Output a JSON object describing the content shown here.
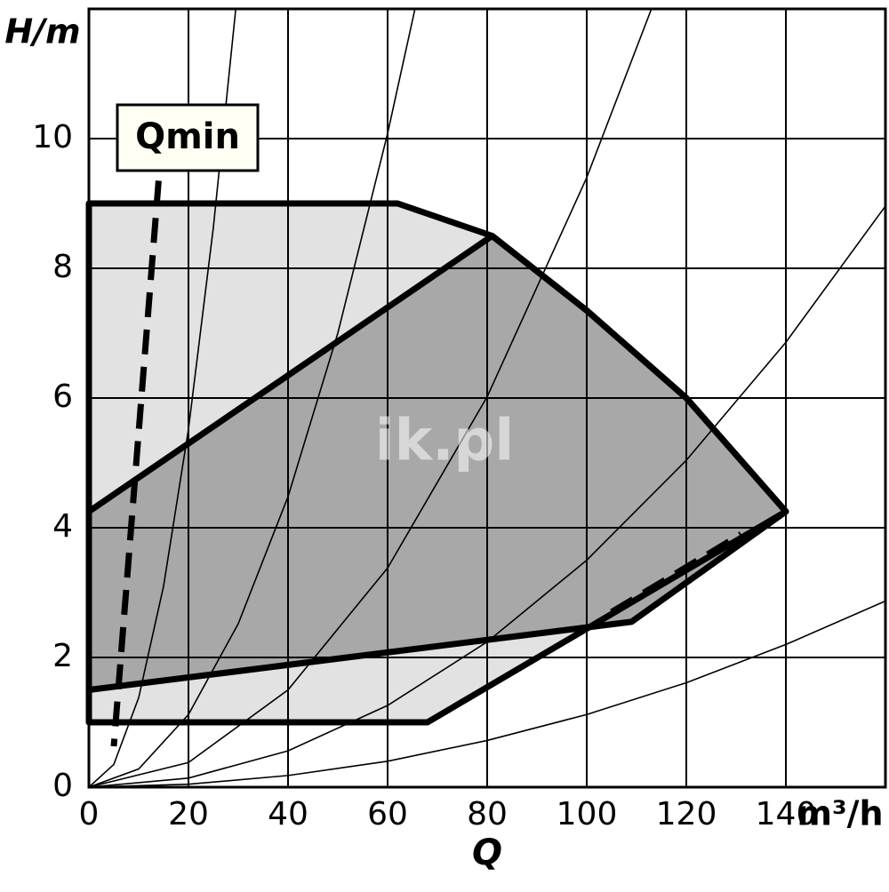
{
  "chart_data": {
    "type": "pump-curve",
    "title": "H/m",
    "x_label": "Q",
    "x_unit": "m³/h",
    "annotation": "Qmin",
    "watermark": "ik.pl",
    "xlim": [
      0,
      160
    ],
    "ylim": [
      0,
      12
    ],
    "xticks": [
      0,
      20,
      40,
      60,
      80,
      100,
      120,
      140
    ],
    "yticks": [
      0,
      2,
      4,
      6,
      8,
      10
    ],
    "grid": true,
    "regions": [
      {
        "color": "#e2e2e2",
        "x": [
          0,
          62,
          81,
          100,
          120,
          140,
          68,
          0
        ],
        "values": [
          9,
          9,
          8.5,
          7.35,
          6,
          4.25,
          1,
          1
        ]
      },
      {
        "color": "#a8a8a8",
        "x": [
          0,
          81,
          100,
          120,
          140,
          109,
          0
        ],
        "values": [
          4.25,
          8.5,
          7.35,
          6,
          4.25,
          2.55,
          1.5
        ]
      }
    ],
    "curves": [
      {
        "x": [
          0,
          5,
          10,
          15,
          20,
          25,
          29.5
        ],
        "values": [
          0,
          0.35,
          1.38,
          3.1,
          5.52,
          8.63,
          12
        ]
      },
      {
        "x": [
          0,
          10,
          20,
          30,
          40,
          50,
          60,
          65.5
        ],
        "values": [
          0,
          0.28,
          1.12,
          2.52,
          4.48,
          7,
          10.08,
          12
        ]
      },
      {
        "x": [
          0,
          20,
          40,
          60,
          80,
          100,
          113
        ],
        "values": [
          0,
          0.38,
          1.5,
          3.38,
          6.02,
          9.4,
          12
        ]
      },
      {
        "x": [
          0,
          20,
          40,
          60,
          80,
          100,
          120,
          140,
          160
        ],
        "values": [
          0,
          0.14,
          0.56,
          1.26,
          2.24,
          3.5,
          5.04,
          6.86,
          8.96
        ]
      },
      {
        "x": [
          0,
          20,
          40,
          60,
          80,
          100,
          120,
          140,
          160
        ],
        "values": [
          0,
          0.045,
          0.18,
          0.4,
          0.72,
          1.12,
          1.61,
          2.2,
          2.87
        ]
      }
    ],
    "dashed_lines": [
      {
        "x": [
          14,
          5
        ],
        "values": [
          9.35,
          0.63
        ]
      },
      {
        "x": [
          105,
          131
        ],
        "values": [
          2.7,
          3.9
        ]
      }
    ]
  }
}
